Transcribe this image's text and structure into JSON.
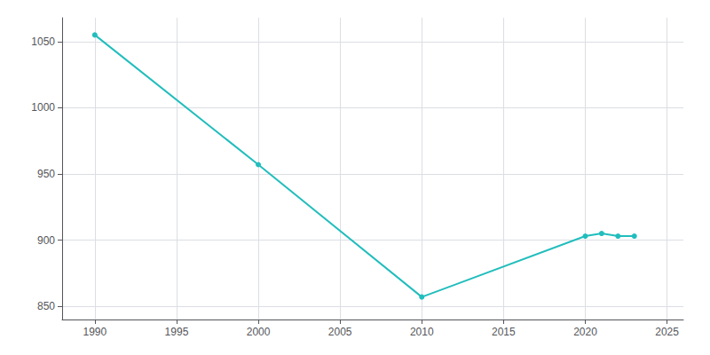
{
  "chart_data": {
    "type": "line",
    "x": [
      1990,
      2000,
      2010,
      2020,
      2021,
      2022,
      2023
    ],
    "values": [
      1055,
      957,
      857,
      903,
      905,
      903,
      903
    ],
    "color": "#22bdbd",
    "marker": "circle",
    "xlim": [
      1988,
      2026
    ],
    "xticks": [
      1990,
      1995,
      2000,
      2005,
      2010,
      2015,
      2020,
      2025
    ],
    "ylim": [
      840,
      1068
    ],
    "yticks": [
      850,
      900,
      950,
      1000,
      1050
    ],
    "grid": true
  }
}
